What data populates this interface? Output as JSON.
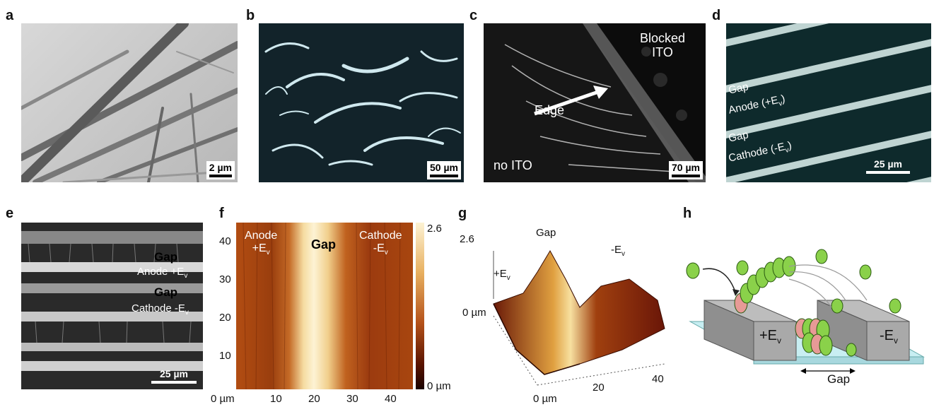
{
  "panels": {
    "a": {
      "letter": "a",
      "scale": "2 µm"
    },
    "b": {
      "letter": "b",
      "scale": "50 µm"
    },
    "c": {
      "letter": "c",
      "scale": "70 µm",
      "blocked_label": "Blocked ITO",
      "edge_label": "Edge",
      "no_ito_label": "no ITO"
    },
    "d": {
      "letter": "d",
      "scale": "25 µm",
      "gap1": "Gap",
      "anode_label": "Anode (+E",
      "anode_sub": "v",
      "anode_end": ")",
      "gap2": "Gap",
      "cathode_label": "Cathode (-E",
      "cathode_sub": "v",
      "cathode_end": ")"
    },
    "e": {
      "letter": "e",
      "scale": "25 µm",
      "gap1": "Gap",
      "anode_label": "Anode +E",
      "anode_sub": "v",
      "gap2": "Gap",
      "cathode_label": "Cathode -E",
      "cathode_sub": "v"
    },
    "f": {
      "letter": "f",
      "anode_label": "Anode",
      "anode_e": "+E",
      "anode_sub": "v",
      "gap_label": "Gap",
      "cathode_label": "Cathode",
      "cathode_e": "-E",
      "cathode_sub": "v",
      "colorbar_max": "2.6",
      "colorbar_min": "0 µm",
      "y_ticks": [
        "40",
        "30",
        "20",
        "10"
      ],
      "x_ticks": [
        "0 µm",
        "10",
        "20",
        "30",
        "40"
      ]
    },
    "g": {
      "letter": "g",
      "gap_label": "Gap",
      "z_max": "2.6",
      "plus_e": "+E",
      "plus_sub": "v",
      "minus_e": "-E",
      "minus_sub": "v",
      "z_zero": "0 µm",
      "x_ticks": [
        "20",
        "40"
      ],
      "origin": "0 µm"
    },
    "h": {
      "letter": "h",
      "anode": "+E",
      "anode_sub": "v",
      "cathode": "-E",
      "cathode_sub": "v",
      "gap": "Gap"
    }
  },
  "colors": {
    "heat_dark": "#2a0400",
    "heat_mid": "#b5521a",
    "heat_light": "#fdf0c8",
    "green": "#8ad14a",
    "pink": "#e79a96"
  }
}
